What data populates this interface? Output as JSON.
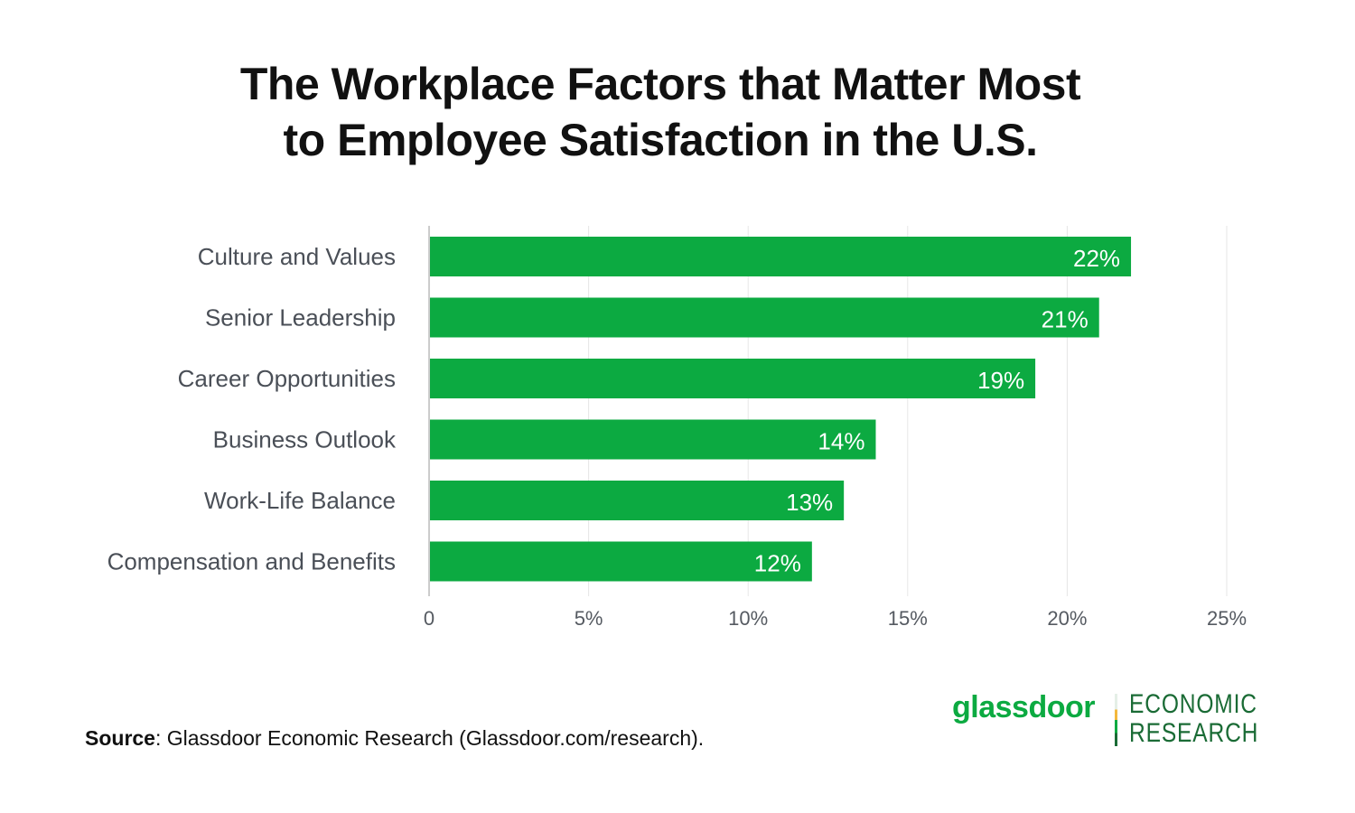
{
  "chart_data": {
    "type": "bar",
    "orientation": "horizontal",
    "title": "The Workplace Factors that Matter Most to Employee Satisfaction in the U.S.",
    "title_lines": [
      "The Workplace Factors that Matter Most",
      "to Employee Satisfaction in the U.S."
    ],
    "categories": [
      "Culture and Values",
      "Senior Leadership",
      "Career Opportunities",
      "Business Outlook",
      "Work-Life Balance",
      "Compensation and Benefits"
    ],
    "values": [
      22,
      21,
      19,
      14,
      13,
      12
    ],
    "data_labels": [
      "22%",
      "21%",
      "19%",
      "14%",
      "13%",
      "12%"
    ],
    "xlim": [
      0,
      25
    ],
    "x_ticks": [
      0,
      5,
      10,
      15,
      20,
      25
    ],
    "x_tick_labels": [
      "0",
      "5%",
      "10%",
      "15%",
      "20%",
      "25%"
    ],
    "xlabel": "",
    "ylabel": "",
    "grid": "vertical",
    "bar_color": "#0caa41"
  },
  "source": {
    "label": "Source",
    "text": ": Glassdoor Economic Research (Glassdoor.com/research)."
  },
  "logo": {
    "brand": "glassdoor",
    "line1": "ECONOMIC",
    "line2": "RESEARCH"
  }
}
